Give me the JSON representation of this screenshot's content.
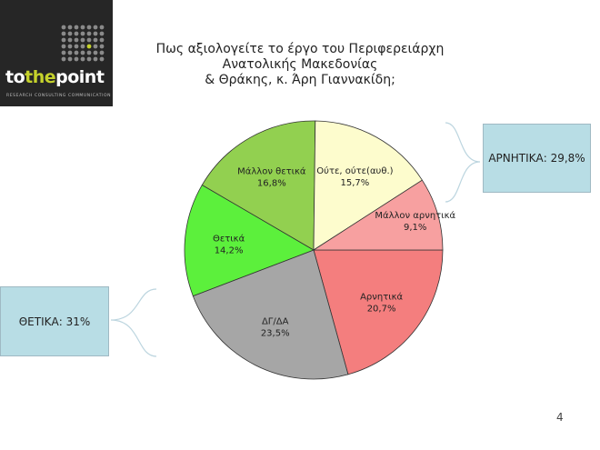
{
  "logo": {
    "word_part1": "to",
    "word_part2": "the",
    "word_part3": "point",
    "tagline": "RESEARCH   CONSULTING   COMMUNICATION",
    "background_color": "#262626",
    "accent_color": "#c5d22c"
  },
  "title": {
    "line1": "Πως αξιολογείτε το έργο του Περιφερειάρχη Ανατολικής Μακεδονίας",
    "line2": "& Θράκης, κ. Άρη Γιαννακίδη;"
  },
  "callouts": {
    "negative": "ΑΡΝΗΤΙΚΑ: 29,8%",
    "positive": "ΘΕΤΙΚΑ: 31%",
    "box_color": "#b8dde5",
    "bracket_color": "#bcd5df"
  },
  "page_number": "4",
  "chart_data": {
    "type": "pie",
    "start_angle_deg": 0,
    "direction": "clockwise",
    "slices": [
      {
        "name": "Αρνητικά",
        "value": 20.7,
        "label": "20,7%",
        "color": "#f47e7e"
      },
      {
        "name": "ΔΓ/ΔΑ",
        "value": 23.5,
        "label": "23,5%",
        "color": "#a6a6a6"
      },
      {
        "name": "Θετικά",
        "value": 14.2,
        "label": "14,2%",
        "color": "#5cf03c"
      },
      {
        "name": "Μάλλον θετικά",
        "value": 16.8,
        "label": "16,8%",
        "color": "#92d050"
      },
      {
        "name": "Ούτε, ούτε(αυθ.)",
        "value": 15.7,
        "label": "15,7%",
        "color": "#fdfccd"
      },
      {
        "name": "Μάλλον αρνητικά",
        "value": 9.1,
        "label": "9,1%",
        "color": "#f7a0a0"
      }
    ]
  }
}
